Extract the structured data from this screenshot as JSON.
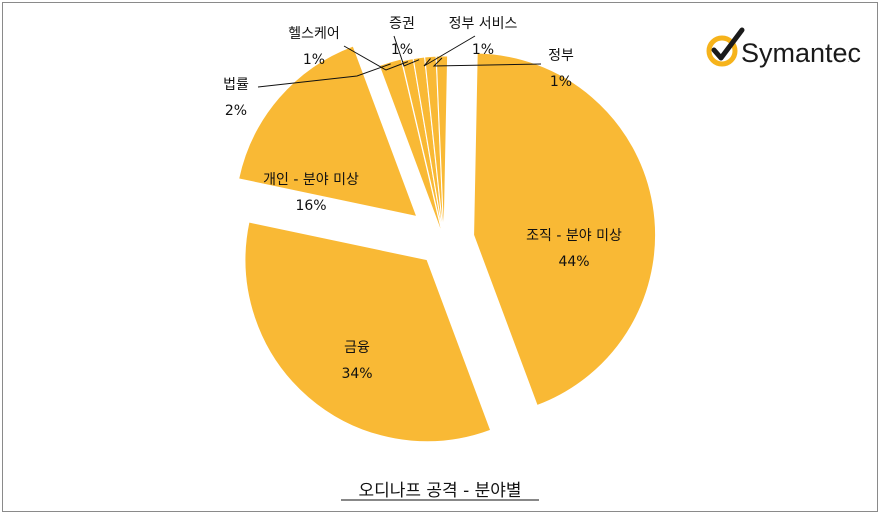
{
  "logo": {
    "text": "Symantec",
    "mark_color": "#f6b31b"
  },
  "chart_data": {
    "type": "pie",
    "title": "오디나프 공격 - 분야별",
    "slice_color": "#f9b935",
    "slices": [
      {
        "name": "조직 - 분야 미상",
        "value": 44,
        "label": "44%"
      },
      {
        "name": "금융",
        "value": 34,
        "label": "34%"
      },
      {
        "name": "개인 - 분야 미상",
        "value": 16,
        "label": "16%"
      },
      {
        "name": "법률",
        "value": 2,
        "label": "2%"
      },
      {
        "name": "헬스케어",
        "value": 1,
        "label": "1%"
      },
      {
        "name": "증권",
        "value": 1,
        "label": "1%"
      },
      {
        "name": "정부 서비스",
        "value": 1,
        "label": "1%"
      },
      {
        "name": "정부",
        "value": 1,
        "label": "1%"
      }
    ]
  }
}
